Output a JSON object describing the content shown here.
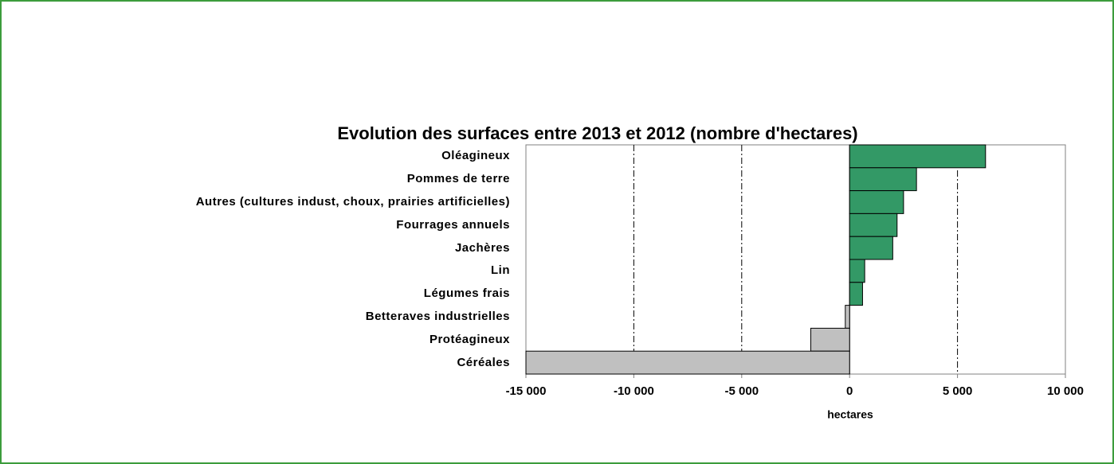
{
  "chart_data": {
    "type": "bar",
    "orientation": "horizontal",
    "title": "Evolution des surfaces entre 2013 et 2012 (nombre d'hectares)",
    "xlabel": "hectares",
    "categories": [
      "Oléagineux",
      "Pommes de terre",
      "Autres (cultures indust, choux, prairies artificielles)",
      "Fourrages annuels",
      "Jachères",
      "Lin",
      "Légumes frais",
      "Betteraves industrielles",
      "Protéagineux",
      "Céréales"
    ],
    "values": [
      6300,
      3100,
      2500,
      2200,
      2000,
      700,
      600,
      -200,
      -1800,
      -15000
    ],
    "positive_color": "#339966",
    "negative_color": "#c0c0c0",
    "xlim": [
      -15000,
      10000
    ],
    "xticks": [
      {
        "value": -15000,
        "label": "-15 000"
      },
      {
        "value": -10000,
        "label": "-10 000"
      },
      {
        "value": -5000,
        "label": "-5 000"
      },
      0,
      {
        "value": 5000,
        "label": "5 000"
      },
      {
        "value": 10000,
        "label": "10 000"
      }
    ],
    "grid": true
  }
}
